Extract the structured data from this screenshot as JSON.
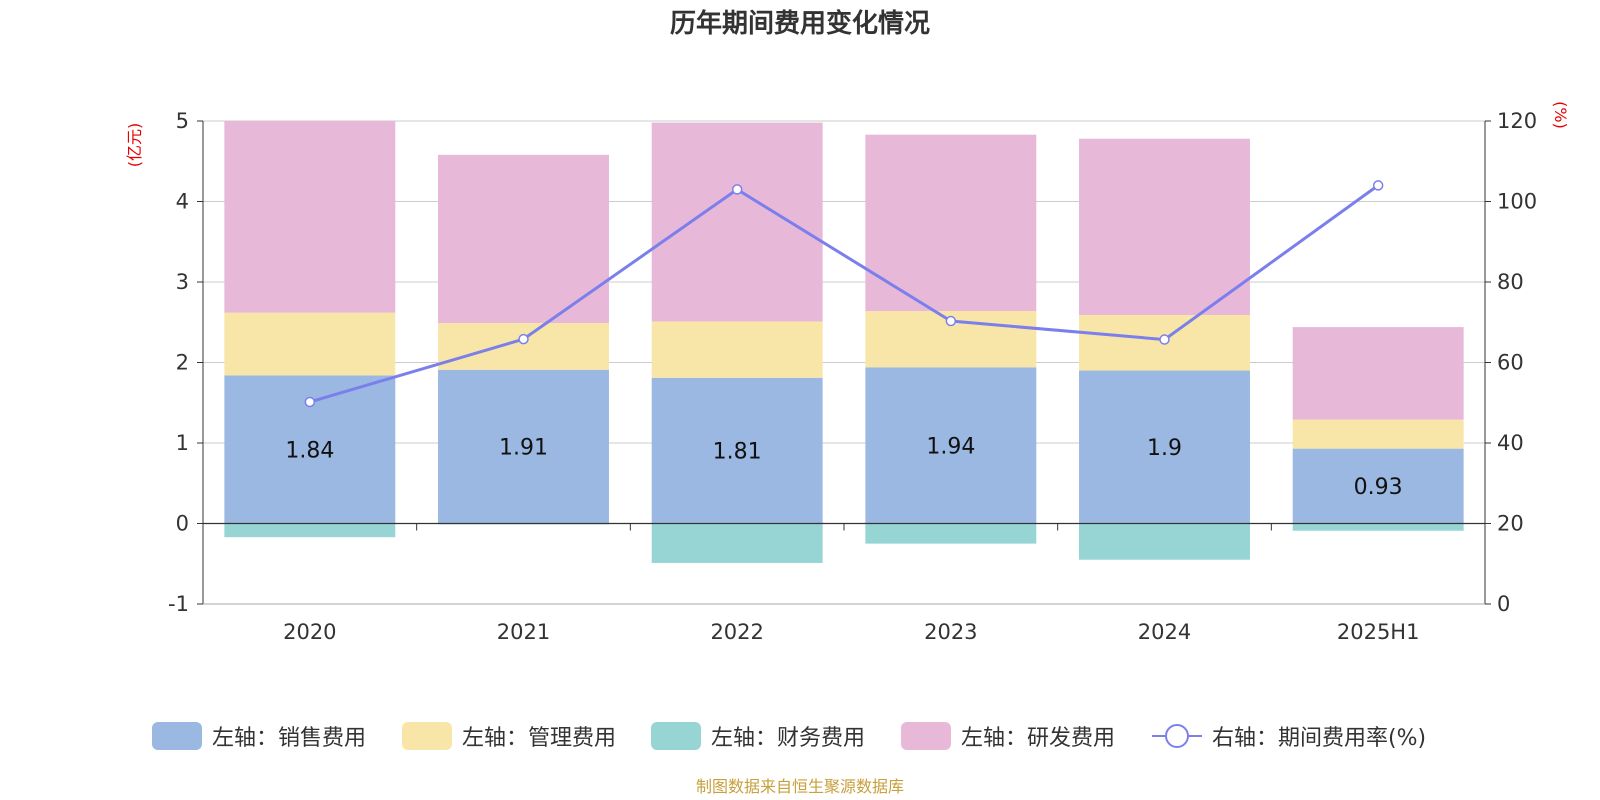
{
  "chart_data": {
    "type": "bar",
    "title": "历年期间费用变化情况",
    "categories": [
      "2020",
      "2021",
      "2022",
      "2023",
      "2024",
      "2025H1"
    ],
    "stacked": true,
    "left_axis": {
      "unit": "(亿元)",
      "ylim": [
        -1,
        5
      ],
      "ticks": [
        "5",
        "4",
        "3",
        "2",
        "1",
        "0",
        "-1"
      ]
    },
    "right_axis": {
      "unit": "(%)",
      "ylim": [
        0,
        120
      ],
      "ticks": [
        "120",
        "100",
        "80",
        "60",
        "40",
        "20",
        "0"
      ]
    },
    "series": [
      {
        "name": "左轴：销售费用",
        "axis": "left",
        "type": "bar",
        "color": "#9bb8e2",
        "values": [
          1.84,
          1.91,
          1.81,
          1.94,
          1.9,
          0.93
        ],
        "labels": [
          "1.84",
          "1.91",
          "1.81",
          "1.94",
          "1.9",
          "0.93"
        ]
      },
      {
        "name": "左轴：管理费用",
        "axis": "left",
        "type": "bar",
        "color": "#f8e6a8",
        "values": [
          0.78,
          0.58,
          0.7,
          0.7,
          0.69,
          0.36
        ]
      },
      {
        "name": "左轴：财务费用",
        "axis": "left",
        "type": "bar",
        "color": "#97d4d4",
        "values": [
          -0.17,
          -0.01,
          -0.49,
          -0.25,
          -0.45,
          -0.09
        ]
      },
      {
        "name": "左轴：研发费用",
        "axis": "left",
        "type": "bar",
        "color": "#e8b8d9",
        "values": [
          2.38,
          2.09,
          2.47,
          2.19,
          2.19,
          1.15
        ]
      },
      {
        "name": "右轴：期间费用率(%)",
        "axis": "right",
        "type": "line",
        "color": "#7b7fec",
        "values": [
          50.2,
          65.8,
          103,
          70.3,
          65.7,
          104
        ]
      }
    ],
    "grid": true,
    "legend_position": "bottom"
  },
  "source_note": "制图数据来自恒生聚源数据库"
}
